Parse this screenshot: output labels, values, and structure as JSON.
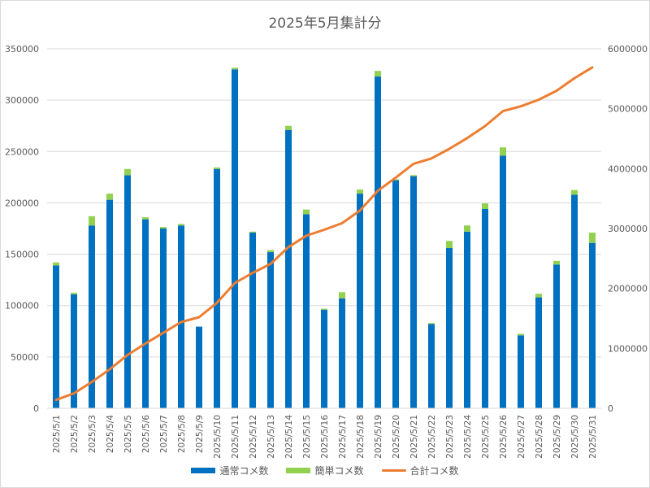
{
  "chart_data": {
    "type": "bar",
    "title": "2025年5月集計分",
    "categories": [
      "2025/5/1",
      "2025/5/2",
      "2025/5/3",
      "2025/5/4",
      "2025/5/5",
      "2025/5/6",
      "2025/5/7",
      "2025/5/8",
      "2025/5/9",
      "2025/5/10",
      "2025/5/11",
      "2025/5/12",
      "2025/5/13",
      "2025/5/14",
      "2025/5/15",
      "2025/5/16",
      "2025/5/17",
      "2025/5/18",
      "2025/5/19",
      "2025/5/20",
      "2025/5/21",
      "2025/5/22",
      "2025/5/23",
      "2025/5/24",
      "2025/5/25",
      "2025/5/26",
      "2025/5/27",
      "2025/5/28",
      "2025/5/29",
      "2025/5/30",
      "2025/5/31"
    ],
    "series": [
      {
        "name": "通常コメ数",
        "type": "bar",
        "axis": "left",
        "color": "#0070c0",
        "values": [
          139000,
          111000,
          178000,
          203000,
          227000,
          184000,
          175000,
          178000,
          79500,
          233000,
          330000,
          171000,
          152000,
          271000,
          189000,
          96000,
          107000,
          209000,
          323000,
          222000,
          226000,
          82000,
          156000,
          172000,
          194000,
          246000,
          71000,
          108000,
          140000,
          208000,
          161000
        ]
      },
      {
        "name": "簡単コメ数",
        "type": "bar",
        "axis": "left",
        "color": "#92d050",
        "values": [
          3000,
          1500,
          9000,
          6000,
          6000,
          2000,
          1500,
          1500,
          0,
          1500,
          1500,
          1000,
          2000,
          4000,
          4500,
          1000,
          6000,
          4000,
          5500,
          1000,
          1000,
          1000,
          7000,
          6000,
          5500,
          8000,
          1500,
          3500,
          3500,
          4500,
          10000
        ]
      },
      {
        "name": "合計コメ数",
        "type": "line",
        "axis": "right",
        "color": "#ed7d31",
        "values": [
          140000,
          250000,
          440000,
          650000,
          890000,
          1080000,
          1260000,
          1440000,
          1520000,
          1760000,
          2090000,
          2260000,
          2410000,
          2690000,
          2880000,
          2980000,
          3090000,
          3300000,
          3630000,
          3850000,
          4080000,
          4170000,
          4330000,
          4510000,
          4710000,
          4960000,
          5040000,
          5150000,
          5300000,
          5510000,
          5690000
        ]
      }
    ],
    "y_left": {
      "min": 0,
      "max": 350000,
      "ticks": [
        0,
        50000,
        100000,
        150000,
        200000,
        250000,
        300000,
        350000
      ]
    },
    "y_right": {
      "min": 0,
      "max": 6000000,
      "ticks": [
        0,
        1000000,
        2000000,
        3000000,
        4000000,
        5000000,
        6000000
      ]
    },
    "gridlines": true,
    "legend_position": "bottom"
  }
}
